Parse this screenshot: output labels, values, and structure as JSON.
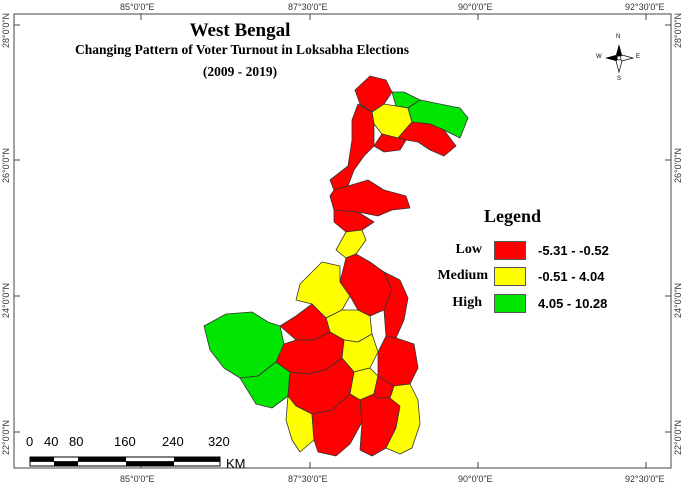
{
  "map": {
    "title": "West Bengal",
    "subtitle": "Changing Pattern of Voter Turnout in Loksabha Elections",
    "period": "(2009 - 2019)",
    "longitude_labels": [
      "85°0'0\"E",
      "87°30'0\"E",
      "90°0'0\"E",
      "92°30'0\"E"
    ],
    "latitude_labels": [
      "28°0'0\"N",
      "26°0'0\"N",
      "24°0'0\"N",
      "22°0'0\"N"
    ],
    "colors": {
      "low": "#ff0000",
      "medium": "#ffff00",
      "high": "#00e600",
      "border": "#333333"
    }
  },
  "legend": {
    "title": "Legend",
    "items": [
      {
        "label": "Low",
        "range": "-5.31 - -0.52",
        "color": "#ff0000"
      },
      {
        "label": "Medium",
        "range": "-0.51 - 4.04",
        "color": "#ffff00"
      },
      {
        "label": "High",
        "range": "4.05 - 10.28",
        "color": "#00e600"
      }
    ]
  },
  "scale_bar": {
    "ticks": [
      "0",
      "40",
      "80",
      "160",
      "240",
      "320"
    ],
    "unit": "KM"
  },
  "compass": {
    "n": "N",
    "s": "S",
    "e": "E",
    "w": "W"
  }
}
